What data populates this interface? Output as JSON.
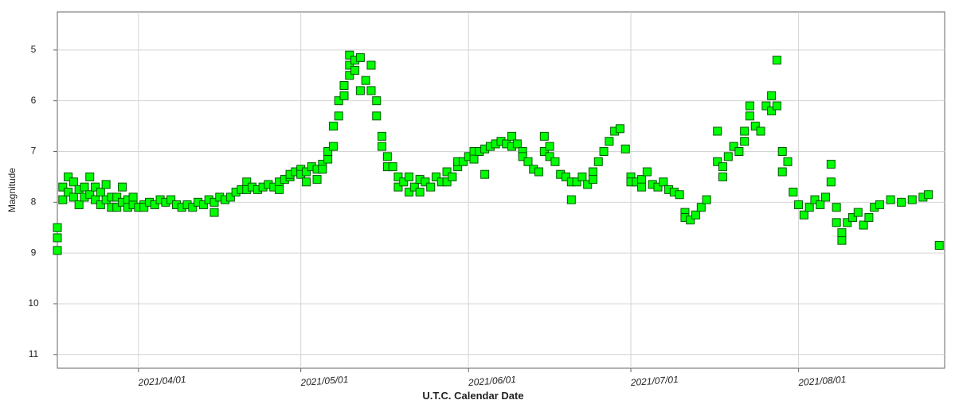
{
  "chart_data": {
    "type": "scatter",
    "x_label": "U.T.C. Calendar Date",
    "y_label": "Magnitude",
    "xlim": [
      "2021/03/17",
      "2021/08/28"
    ],
    "xticks": [
      "2021/04/01",
      "2021/05/01",
      "2021/06/01",
      "2021/07/01",
      "2021/08/01"
    ],
    "ylim": [
      4.25,
      11.27
    ],
    "yticks": [
      5,
      6,
      7,
      8,
      9,
      10,
      11
    ],
    "y_inverted": true,
    "grid": true,
    "series": [
      {
        "color": "#00ff00",
        "edgecolor": "#005500",
        "x": [
          "2021/03/17",
          "2021/03/17",
          "2021/03/17",
          "2021/03/18",
          "2021/03/18",
          "2021/03/19",
          "2021/03/19",
          "2021/03/20",
          "2021/03/20",
          "2021/03/21",
          "2021/03/21",
          "2021/03/22",
          "2021/03/22",
          "2021/03/23",
          "2021/03/23",
          "2021/03/24",
          "2021/03/24",
          "2021/03/25",
          "2021/03/25",
          "2021/03/26",
          "2021/03/26",
          "2021/03/27",
          "2021/03/27",
          "2021/03/28",
          "2021/03/28",
          "2021/03/29",
          "2021/03/29",
          "2021/03/30",
          "2021/03/30",
          "2021/03/31",
          "2021/03/31",
          "2021/04/01",
          "2021/04/02",
          "2021/04/02",
          "2021/04/03",
          "2021/04/04",
          "2021/04/05",
          "2021/04/06",
          "2021/04/07",
          "2021/04/08",
          "2021/04/09",
          "2021/04/10",
          "2021/04/11",
          "2021/04/12",
          "2021/04/13",
          "2021/04/14",
          "2021/04/15",
          "2021/04/15",
          "2021/04/16",
          "2021/04/17",
          "2021/04/18",
          "2021/04/19",
          "2021/04/20",
          "2021/04/21",
          "2021/04/21",
          "2021/04/22",
          "2021/04/23",
          "2021/04/24",
          "2021/04/25",
          "2021/04/26",
          "2021/04/27",
          "2021/04/27",
          "2021/04/28",
          "2021/04/29",
          "2021/04/29",
          "2021/04/30",
          "2021/05/01",
          "2021/05/01",
          "2021/05/02",
          "2021/05/02",
          "2021/05/03",
          "2021/05/04",
          "2021/05/04",
          "2021/05/05",
          "2021/05/05",
          "2021/05/06",
          "2021/05/06",
          "2021/05/07",
          "2021/05/07",
          "2021/05/08",
          "2021/05/08",
          "2021/05/09",
          "2021/05/09",
          "2021/05/10",
          "2021/05/10",
          "2021/05/10",
          "2021/05/11",
          "2021/05/11",
          "2021/05/12",
          "2021/05/12",
          "2021/05/13",
          "2021/05/14",
          "2021/05/14",
          "2021/05/15",
          "2021/05/15",
          "2021/05/16",
          "2021/05/16",
          "2021/05/17",
          "2021/05/17",
          "2021/05/18",
          "2021/05/19",
          "2021/05/19",
          "2021/05/20",
          "2021/05/21",
          "2021/05/21",
          "2021/05/22",
          "2021/05/23",
          "2021/05/23",
          "2021/05/24",
          "2021/05/25",
          "2021/05/26",
          "2021/05/27",
          "2021/05/28",
          "2021/05/28",
          "2021/05/29",
          "2021/05/30",
          "2021/05/30",
          "2021/05/31",
          "2021/06/01",
          "2021/06/02",
          "2021/06/02",
          "2021/06/03",
          "2021/06/04",
          "2021/06/04",
          "2021/06/05",
          "2021/06/06",
          "2021/06/07",
          "2021/06/08",
          "2021/06/09",
          "2021/06/09",
          "2021/06/10",
          "2021/06/11",
          "2021/06/11",
          "2021/06/12",
          "2021/06/13",
          "2021/06/14",
          "2021/06/15",
          "2021/06/15",
          "2021/06/16",
          "2021/06/16",
          "2021/06/17",
          "2021/06/18",
          "2021/06/19",
          "2021/06/20",
          "2021/06/20",
          "2021/06/21",
          "2021/06/22",
          "2021/06/23",
          "2021/06/24",
          "2021/06/24",
          "2021/06/25",
          "2021/06/26",
          "2021/06/27",
          "2021/06/28",
          "2021/06/29",
          "2021/06/30",
          "2021/07/01",
          "2021/07/01",
          "2021/07/02",
          "2021/07/03",
          "2021/07/03",
          "2021/07/04",
          "2021/07/05",
          "2021/07/06",
          "2021/07/07",
          "2021/07/08",
          "2021/07/09",
          "2021/07/10",
          "2021/07/11",
          "2021/07/11",
          "2021/07/12",
          "2021/07/13",
          "2021/07/14",
          "2021/07/15",
          "2021/07/17",
          "2021/07/17",
          "2021/07/18",
          "2021/07/18",
          "2021/07/19",
          "2021/07/20",
          "2021/07/21",
          "2021/07/22",
          "2021/07/22",
          "2021/07/23",
          "2021/07/23",
          "2021/07/24",
          "2021/07/25",
          "2021/07/26",
          "2021/07/27",
          "2021/07/27",
          "2021/07/28",
          "2021/07/28",
          "2021/07/29",
          "2021/07/29",
          "2021/07/30",
          "2021/07/31",
          "2021/08/01",
          "2021/08/02",
          "2021/08/03",
          "2021/08/04",
          "2021/08/05",
          "2021/08/06",
          "2021/08/07",
          "2021/08/07",
          "2021/08/08",
          "2021/08/08",
          "2021/08/09",
          "2021/08/09",
          "2021/08/10",
          "2021/08/11",
          "2021/08/12",
          "2021/08/13",
          "2021/08/14",
          "2021/08/15",
          "2021/08/16",
          "2021/08/18",
          "2021/08/20",
          "2021/08/22",
          "2021/08/24",
          "2021/08/25",
          "2021/08/27"
        ],
        "values": [
          8.95,
          8.7,
          8.5,
          7.95,
          7.7,
          7.5,
          7.8,
          7.6,
          7.9,
          8.05,
          7.75,
          7.7,
          7.9,
          7.5,
          7.85,
          7.7,
          7.95,
          7.8,
          8.05,
          7.95,
          7.65,
          8.1,
          7.9,
          8.1,
          7.9,
          8.0,
          7.7,
          7.95,
          8.1,
          8.05,
          7.9,
          8.1,
          8.05,
          8.1,
          8.0,
          8.05,
          7.95,
          8.0,
          7.95,
          8.05,
          8.1,
          8.05,
          8.1,
          8.0,
          8.05,
          7.95,
          8.2,
          8.0,
          7.9,
          7.95,
          7.9,
          7.8,
          7.75,
          7.6,
          7.75,
          7.7,
          7.75,
          7.7,
          7.65,
          7.7,
          7.6,
          7.75,
          7.55,
          7.5,
          7.45,
          7.4,
          7.35,
          7.45,
          7.4,
          7.6,
          7.3,
          7.35,
          7.55,
          7.25,
          7.35,
          7.15,
          7.0,
          6.5,
          6.9,
          6.0,
          6.3,
          5.7,
          5.9,
          5.3,
          5.5,
          5.1,
          5.2,
          5.4,
          5.15,
          5.8,
          5.6,
          5.3,
          5.8,
          6.0,
          6.3,
          6.7,
          6.9,
          7.1,
          7.3,
          7.3,
          7.5,
          7.7,
          7.6,
          7.8,
          7.5,
          7.7,
          7.55,
          7.8,
          7.6,
          7.7,
          7.5,
          7.6,
          7.4,
          7.6,
          7.5,
          7.3,
          7.2,
          7.2,
          7.1,
          7.0,
          7.15,
          7.0,
          6.95,
          7.45,
          6.9,
          6.85,
          6.8,
          6.85,
          6.7,
          6.9,
          6.85,
          7.0,
          7.1,
          7.2,
          7.35,
          7.4,
          6.7,
          7.0,
          6.9,
          7.1,
          7.2,
          7.45,
          7.5,
          7.6,
          7.95,
          7.6,
          7.5,
          7.65,
          7.4,
          7.55,
          7.2,
          7.0,
          6.8,
          6.6,
          6.55,
          6.95,
          7.5,
          7.6,
          7.6,
          7.55,
          7.7,
          7.4,
          7.65,
          7.7,
          7.6,
          7.75,
          7.8,
          7.85,
          8.2,
          8.3,
          8.35,
          8.25,
          8.1,
          7.95,
          6.6,
          7.2,
          7.3,
          7.5,
          7.1,
          6.9,
          7.0,
          6.8,
          6.6,
          6.1,
          6.3,
          6.5,
          6.6,
          6.1,
          5.9,
          6.2,
          5.2,
          6.1,
          7.0,
          7.4,
          7.2,
          7.8,
          8.05,
          8.25,
          8.1,
          7.95,
          8.05,
          7.9,
          7.6,
          7.25,
          8.1,
          8.4,
          8.75,
          8.6,
          8.4,
          8.3,
          8.2,
          8.45,
          8.3,
          8.1,
          8.05,
          7.95,
          8.0,
          7.95,
          7.9,
          7.85,
          8.85
        ]
      }
    ]
  }
}
